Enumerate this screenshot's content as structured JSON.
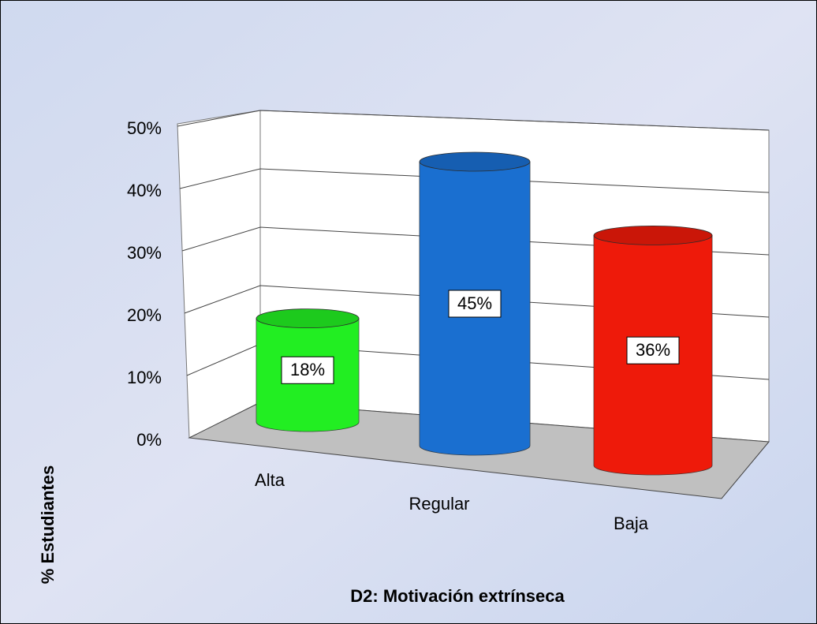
{
  "chart_data": {
    "type": "bar",
    "xlabel": "D2: Motivación extrínseca",
    "ylabel": "% Estudiantes",
    "categories": [
      "Alta",
      "Regular",
      "Baja"
    ],
    "values": [
      18,
      45,
      36
    ],
    "value_labels": [
      "18%",
      "45%",
      "36%"
    ],
    "colors": [
      "#22ee22",
      "#1a6fd0",
      "#ee1a0a"
    ],
    "ylim": [
      0,
      50
    ],
    "yticks": [
      {
        "value": 0,
        "label": "0%"
      },
      {
        "value": 10,
        "label": "10%"
      },
      {
        "value": 20,
        "label": "20%"
      },
      {
        "value": 30,
        "label": "30%"
      },
      {
        "value": 40,
        "label": "40%"
      },
      {
        "value": 50,
        "label": "50%"
      }
    ],
    "grid": true
  }
}
